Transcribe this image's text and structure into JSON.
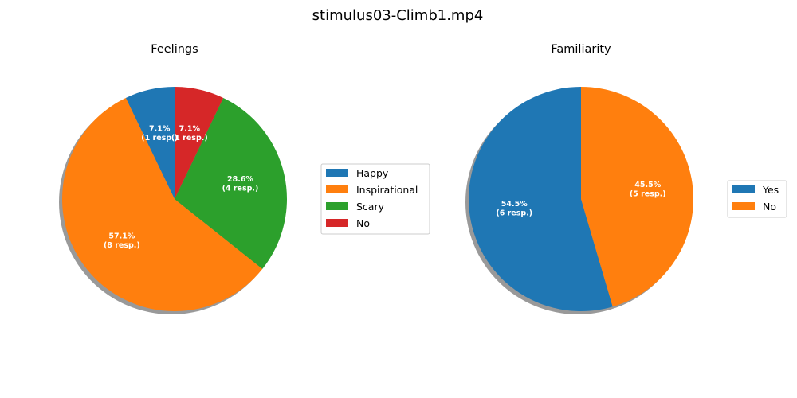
{
  "title": "stimulus03-Climb1.mp4",
  "chart_data": [
    {
      "type": "pie",
      "title": "Feelings",
      "legend_position": "right",
      "slices": [
        {
          "label": "Happy",
          "value": 1,
          "pct_label": "7.1%",
          "resp_label": "(1 resp.)",
          "color": "#1f77b4"
        },
        {
          "label": "Inspirational",
          "value": 8,
          "pct_label": "57.1%",
          "resp_label": "(8 resp.)",
          "color": "#ff7f0e"
        },
        {
          "label": "Scary",
          "value": 4,
          "pct_label": "28.6%",
          "resp_label": "(4 resp.)",
          "color": "#2ca02c"
        },
        {
          "label": "No",
          "value": 1,
          "pct_label": "7.1%",
          "resp_label": "(1 resp.)",
          "color": "#d62728"
        }
      ]
    },
    {
      "type": "pie",
      "title": "Familiarity",
      "legend_position": "right",
      "slices": [
        {
          "label": "Yes",
          "value": 6,
          "pct_label": "54.5%",
          "resp_label": "(6 resp.)",
          "color": "#1f77b4"
        },
        {
          "label": "No",
          "value": 5,
          "pct_label": "45.5%",
          "resp_label": "(5 resp.)",
          "color": "#ff7f0e"
        }
      ]
    }
  ]
}
